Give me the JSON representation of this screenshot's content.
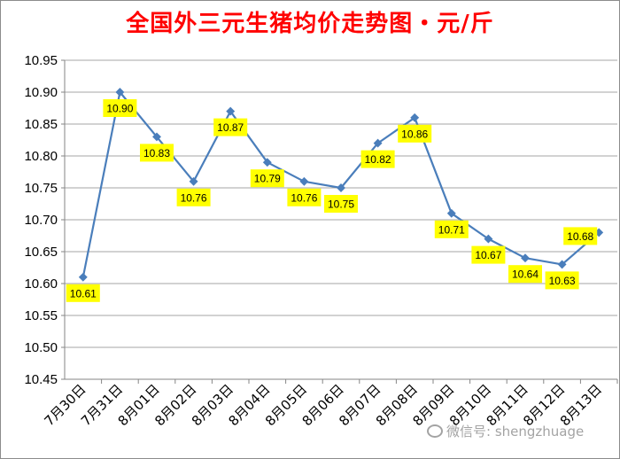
{
  "chart_data": {
    "type": "line",
    "title": "全国外三元生猪均价走势图・元/斤",
    "categories": [
      "7月30日",
      "7月31日",
      "8月01日",
      "8月02日",
      "8月03日",
      "8月04日",
      "8月05日",
      "8月06日",
      "8月07日",
      "8月08日",
      "8月09日",
      "8月10日",
      "8月11日",
      "8月12日",
      "8月13日"
    ],
    "series": [
      {
        "values": [
          10.61,
          10.9,
          10.83,
          10.76,
          10.87,
          10.79,
          10.76,
          10.75,
          10.82,
          10.86,
          10.71,
          10.67,
          10.64,
          10.63,
          10.68
        ]
      }
    ],
    "data_labels": [
      "10.61",
      "10.90",
      "10.83",
      "10.76",
      "10.87",
      "10.79",
      "10.76",
      "10.75",
      "10.82",
      "10.86",
      "10.71",
      "10.67",
      "10.64",
      "10.63",
      "10.68"
    ],
    "yticks": [
      "10.45",
      "10.50",
      "10.55",
      "10.60",
      "10.65",
      "10.70",
      "10.75",
      "10.80",
      "10.85",
      "10.90",
      "10.95"
    ],
    "ylim": [
      10.45,
      10.95
    ],
    "grid": true,
    "legend": "none",
    "colors": {
      "line": "#4a7ebb",
      "label_bg": "#ffff00",
      "title": "#ff0000",
      "grid": "#a6a6a6"
    }
  },
  "watermark": {
    "text": "微信号: shengzhuage",
    "icon": "wechat-icon"
  }
}
